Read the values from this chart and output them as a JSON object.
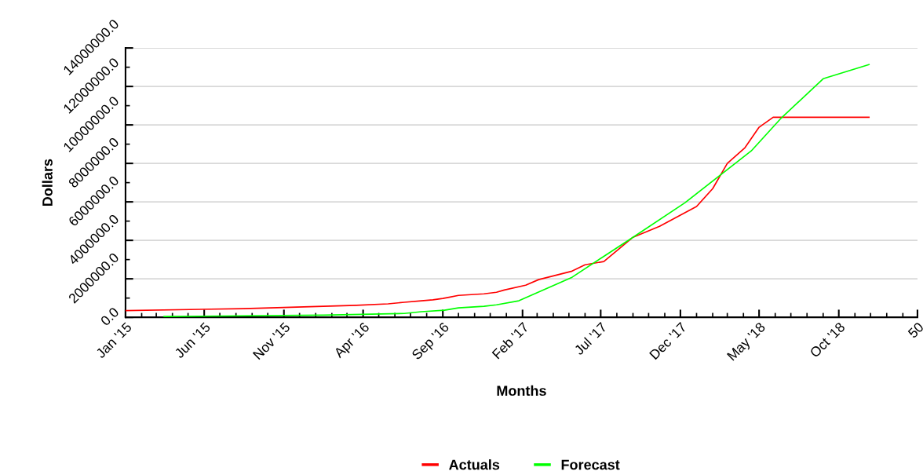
{
  "chart_data": {
    "type": "line",
    "xlabel": "Months",
    "ylabel": "Dollars",
    "xlim": [
      "2015-01-01",
      "2019-03-01"
    ],
    "xticks": [
      {
        "value": "2015-01-01",
        "label": "Jan '15"
      },
      {
        "value": "2015-06-01",
        "label": "Jun '15"
      },
      {
        "value": "2015-11-01",
        "label": "Nov '15"
      },
      {
        "value": "2016-04-01",
        "label": "Apr '16"
      },
      {
        "value": "2016-09-01",
        "label": "Sep '16"
      },
      {
        "value": "2017-02-01",
        "label": "Feb '17"
      },
      {
        "value": "2017-07-01",
        "label": "Jul '17"
      },
      {
        "value": "2017-12-01",
        "label": "Dec '17"
      },
      {
        "value": "2018-05-01",
        "label": "May '18"
      },
      {
        "value": "2018-10-01",
        "label": "Oct '18"
      },
      {
        "value": "2019-03-01",
        "label": "50"
      }
    ],
    "ylim": [
      0,
      14000000
    ],
    "yticks": [
      {
        "value": 0,
        "label": "0.0"
      },
      {
        "value": 2000000,
        "label": "2000000.0"
      },
      {
        "value": 4000000,
        "label": "4000000.0"
      },
      {
        "value": 6000000,
        "label": "6000000.0"
      },
      {
        "value": 8000000,
        "label": "8000000.0"
      },
      {
        "value": 10000000,
        "label": "10000000.0"
      },
      {
        "value": 12000000,
        "label": "12000000.0"
      },
      {
        "value": 14000000,
        "label": "14000000.0"
      }
    ],
    "grid": "y",
    "legend": "bottom",
    "marker": "none",
    "line_style": "solid",
    "series": [
      {
        "name": "Actuals",
        "color": "#ff0000",
        "x": [
          "2015-01-01",
          "2015-08-16",
          "2015-10-19",
          "2016-01-16",
          "2016-03-19",
          "2016-05-19",
          "2016-06-19",
          "2016-07-22",
          "2016-08-13",
          "2016-09-01",
          "2016-09-13",
          "2016-10-01",
          "2016-11-19",
          "2016-12-13",
          "2016-12-28",
          "2017-02-07",
          "2017-03-04",
          "2017-05-07",
          "2017-06-01",
          "2017-07-07",
          "2017-09-01",
          "2017-10-22",
          "2018-01-01",
          "2018-02-01",
          "2018-03-01",
          "2018-04-04",
          "2018-05-01",
          "2018-05-28",
          "2018-11-28"
        ],
        "values": [
          350000,
          450000,
          500000,
          570000,
          620000,
          700000,
          780000,
          860000,
          910000,
          980000,
          1040000,
          1140000,
          1220000,
          1300000,
          1420000,
          1670000,
          1960000,
          2400000,
          2730000,
          2900000,
          4160000,
          4730000,
          5760000,
          6690000,
          8000000,
          8820000,
          9880000,
          10400000,
          10400000
        ]
      },
      {
        "name": "Forecast",
        "color": "#00ff00",
        "x": [
          "2015-03-16",
          "2016-01-16",
          "2016-06-19",
          "2016-07-22",
          "2016-09-04",
          "2016-10-01",
          "2016-11-19",
          "2016-12-13",
          "2017-01-25",
          "2017-05-07",
          "2017-07-10",
          "2017-09-01",
          "2017-12-10",
          "2018-04-16",
          "2018-06-13",
          "2018-09-01",
          "2018-11-28"
        ],
        "values": [
          40000,
          110000,
          200000,
          290000,
          370000,
          490000,
          570000,
          650000,
          860000,
          2080000,
          3220000,
          4160000,
          5960000,
          8650000,
          10370000,
          12400000,
          13140000
        ]
      }
    ]
  }
}
